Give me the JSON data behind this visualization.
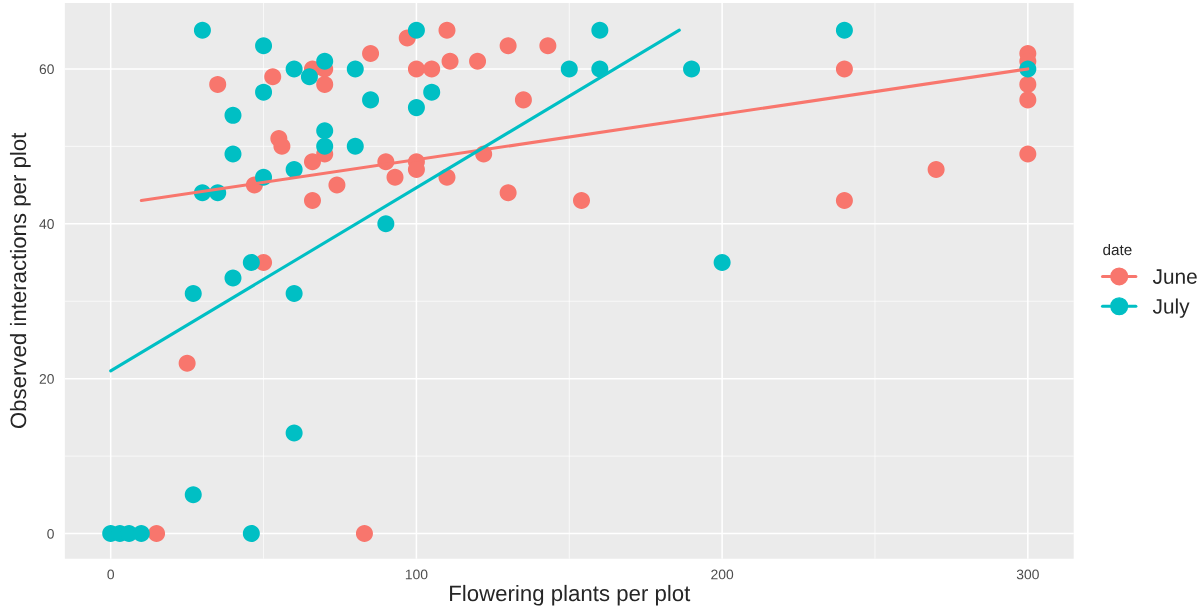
{
  "chart_data": {
    "type": "scatter",
    "xlabel": "Flowering plants per plot",
    "ylabel": "Observed interactions per plot",
    "legend_title": "date",
    "xlim": [
      -15,
      315
    ],
    "ylim": [
      -3.25,
      68.5
    ],
    "xticks": [
      0,
      100,
      200,
      300
    ],
    "yticks": [
      0,
      20,
      40,
      60
    ],
    "grid": true,
    "legend": "right",
    "marker": "circle",
    "series": [
      {
        "name": "June",
        "color": "#f8766d",
        "x": [
          35,
          53,
          66,
          70,
          70,
          85,
          97,
          100,
          105,
          55,
          56,
          66,
          70,
          90,
          100,
          100,
          93,
          74,
          47,
          66,
          50,
          110,
          111,
          120,
          130,
          143,
          135,
          122,
          110,
          130,
          154,
          240,
          240,
          270,
          300,
          300,
          300,
          300,
          300,
          25,
          15,
          83
        ],
        "values": [
          58,
          59,
          60,
          60,
          58,
          62,
          64,
          60,
          60,
          51,
          50,
          48,
          49,
          48,
          48,
          47,
          46,
          45,
          45,
          43,
          35,
          65,
          61,
          61,
          63,
          63,
          56,
          49,
          46,
          44,
          43,
          60,
          43,
          47,
          62,
          61,
          58,
          56,
          49,
          22,
          0,
          0
        ]
      },
      {
        "name": "July",
        "color": "#00bfc4",
        "x": [
          30,
          50,
          60,
          65,
          70,
          80,
          100,
          50,
          85,
          100,
          105,
          40,
          40,
          70,
          70,
          80,
          60,
          50,
          30,
          35,
          90,
          46,
          40,
          27,
          60,
          150,
          160,
          160,
          190,
          200,
          240,
          300,
          60,
          27,
          0,
          3,
          6,
          10,
          46
        ],
        "values": [
          65,
          63,
          60,
          59,
          61,
          60,
          65,
          57,
          56,
          55,
          57,
          54,
          49,
          52,
          50,
          50,
          47,
          46,
          44,
          44,
          40,
          35,
          33,
          31,
          31,
          60,
          60,
          65,
          60,
          35,
          65,
          60,
          13,
          5,
          0,
          0,
          0,
          0,
          0
        ]
      },
      {
        "type": "line",
        "marker": "none",
        "color": "#f8766d",
        "x": [
          10,
          300
        ],
        "values": [
          43,
          60
        ]
      },
      {
        "type": "line",
        "marker": "none",
        "color": "#00bfc4",
        "x": [
          0,
          186
        ],
        "values": [
          21,
          65
        ]
      }
    ]
  }
}
